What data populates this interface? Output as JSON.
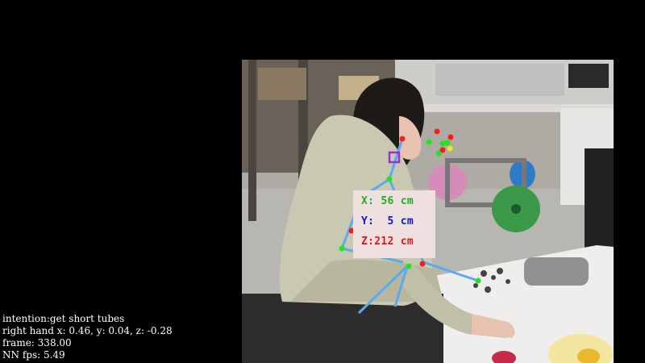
{
  "overlay": {
    "x_text": "X: 56 cm",
    "y_text": "Y:  5 cm",
    "z_text": "Z:212 cm",
    "colors": {
      "x": "#1faf1f",
      "y": "#1414c8",
      "z": "#e01818",
      "skeleton": "#5aaaf0",
      "joint_red": "#ff1a1a",
      "joint_green": "#1ee61e",
      "joint_yellow": "#f2e21a",
      "focus_marker": "#9b2fd0",
      "panel_bg": "#ede0de"
    }
  },
  "hud": {
    "intention": "intention:get short tubes",
    "right_hand": "right hand x: 0.46, y: 0.04, z: -0.28",
    "frame": "frame: 338.00",
    "fps": "NN fps: 5.49"
  }
}
